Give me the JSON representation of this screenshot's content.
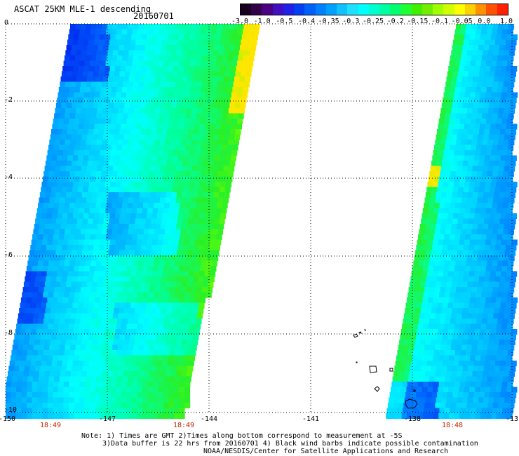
{
  "header": {
    "title": "ASCAT 25KM MLE-1 descending",
    "date": "20160701"
  },
  "colorbar": {
    "labels": [
      "-3.0",
      "-1.0",
      "-0.5",
      "-0.4",
      "-0.35",
      "-0.3",
      "-0.25",
      "-0.2",
      "-0.15",
      "-0.1",
      "-0.05",
      "0.0",
      "1.0"
    ],
    "colors": [
      "#200020",
      "#5a00a0",
      "#2020e0",
      "#0050f0",
      "#0090ff",
      "#20d0ff",
      "#00ffff",
      "#00ff90",
      "#20f000",
      "#a0ff00",
      "#ffff00",
      "#ff8000",
      "#ff2000"
    ]
  },
  "axes": {
    "lat_labels": [
      "0",
      "-2",
      "-4",
      "-6",
      "-8",
      "-10"
    ],
    "lon_labels": [
      "-150",
      "-147",
      "-144",
      "-141",
      "-138",
      "-13"
    ]
  },
  "times": {
    "left": "18:49",
    "middle": "18:49",
    "right": "18:48"
  },
  "notes": {
    "line1": "Note: 1) Times are GMT 2)Times along bottom correspond to measurement at -5S",
    "line2": "3)Data buffer is 22 hrs from 20160701 4) Black wind barbs indicate possible contamination",
    "line3": "NOAA/NESDIS/Center for Satellite Applications and Research"
  }
}
